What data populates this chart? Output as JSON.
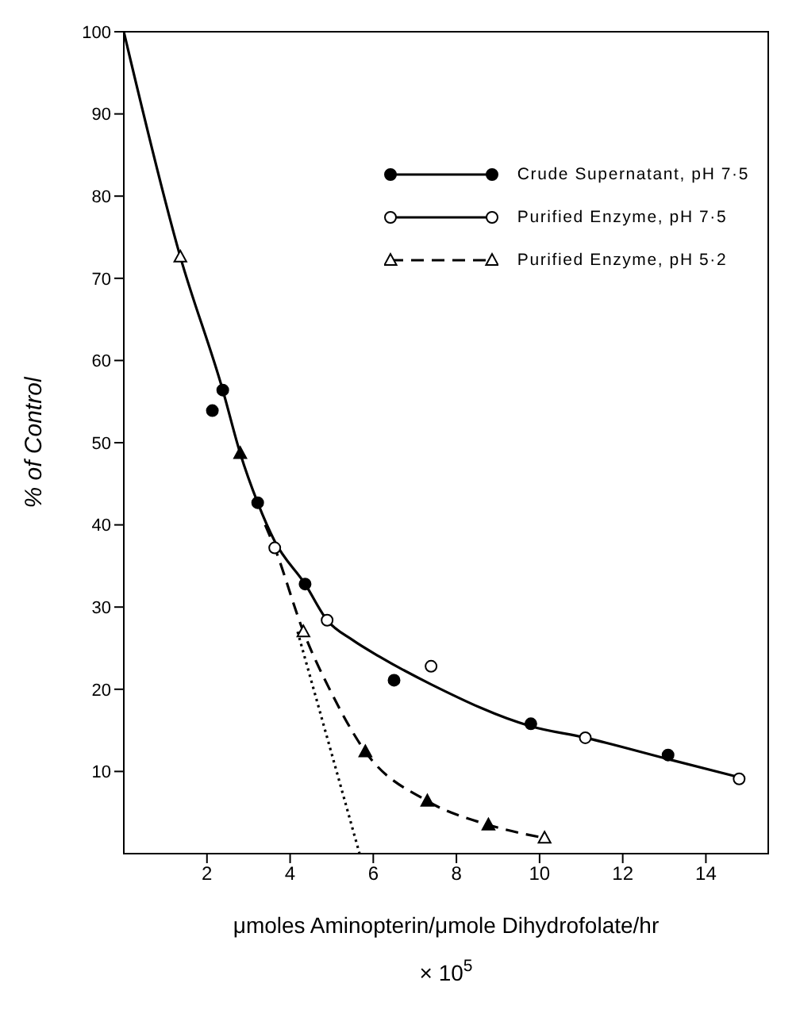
{
  "chart_data": {
    "type": "scatter",
    "xlabel": "μmoles Aminopterin/μmole Dihydrofolate/hr",
    "ylabel": "% of Control",
    "annotations": [
      "× 10$^{5}$"
    ],
    "xlim": [
      0,
      15.5
    ],
    "ylim": [
      0,
      100
    ],
    "xticks": [
      2,
      4,
      6,
      8,
      10,
      12,
      14
    ],
    "yticks": [
      10,
      20,
      30,
      40,
      50,
      60,
      70,
      80,
      90,
      100
    ],
    "legend": "top right",
    "grid": false,
    "series": [
      {
        "name": "Crude Supernatant, pH 7·5",
        "color": "#000000",
        "marker": "circle",
        "line_style": "solid",
        "x": [
          2.13,
          2.38,
          3.22,
          4.36,
          6.5,
          9.79,
          13.09
        ],
        "values": [
          53.9,
          56.4,
          42.7,
          32.8,
          21.1,
          15.8,
          12.0
        ]
      },
      {
        "name": "Purified Enzyme, pH 7·5",
        "color": "#000000",
        "colors": [
          "#ffffff",
          "#ffffff",
          "#ffffff",
          "#ffffff",
          "#ffffff"
        ],
        "marker": "circle",
        "line_style": "solid",
        "x": [
          3.63,
          4.89,
          7.39,
          11.1,
          14.8
        ],
        "values": [
          37.2,
          28.4,
          22.8,
          14.1,
          9.1
        ]
      },
      {
        "name": "Purified Enzyme, pH 5·2",
        "color": "#000000",
        "colors": [
          "#ffffff",
          "#ffffff",
          "#ffffff"
        ],
        "marker": "triangle",
        "line_style": "dashed",
        "x": [
          1.36,
          4.32,
          10.12
        ],
        "values": [
          72.6,
          27.0,
          1.9
        ]
      },
      {
        "color": "#000000",
        "marker": "triangle",
        "x": [
          2.8,
          5.81,
          7.3,
          8.77
        ],
        "values": [
          48.7,
          12.4,
          6.4,
          3.5
        ]
      },
      {
        "type": "line",
        "color": "#000000",
        "marker": "none",
        "line_style": "solid",
        "x": [
          0,
          1.36,
          2.38,
          2.8,
          3.22,
          3.63,
          4.36,
          4.89,
          5.5,
          6.14,
          7.39,
          9.79,
          11.1,
          13.09,
          14.8
        ],
        "values": [
          100,
          72.6,
          56.4,
          48.7,
          42.7,
          38.0,
          32.8,
          28.4,
          26.0,
          24.0,
          20.6,
          15.5,
          14.1,
          11.5,
          9.3
        ]
      },
      {
        "type": "line",
        "color": "#000000",
        "marker": "none",
        "line_style": "dashed",
        "x": [
          3.4,
          3.63,
          4.32,
          5.0,
          5.81,
          7.3,
          8.77,
          10.12
        ],
        "values": [
          40.0,
          37.2,
          27.0,
          19.5,
          12.4,
          6.4,
          3.5,
          1.9
        ]
      },
      {
        "type": "line",
        "color": "#000000",
        "marker": "none",
        "line_style": "dotted",
        "x": [
          4.18,
          5.67
        ],
        "values": [
          27.0,
          0
        ]
      }
    ]
  }
}
